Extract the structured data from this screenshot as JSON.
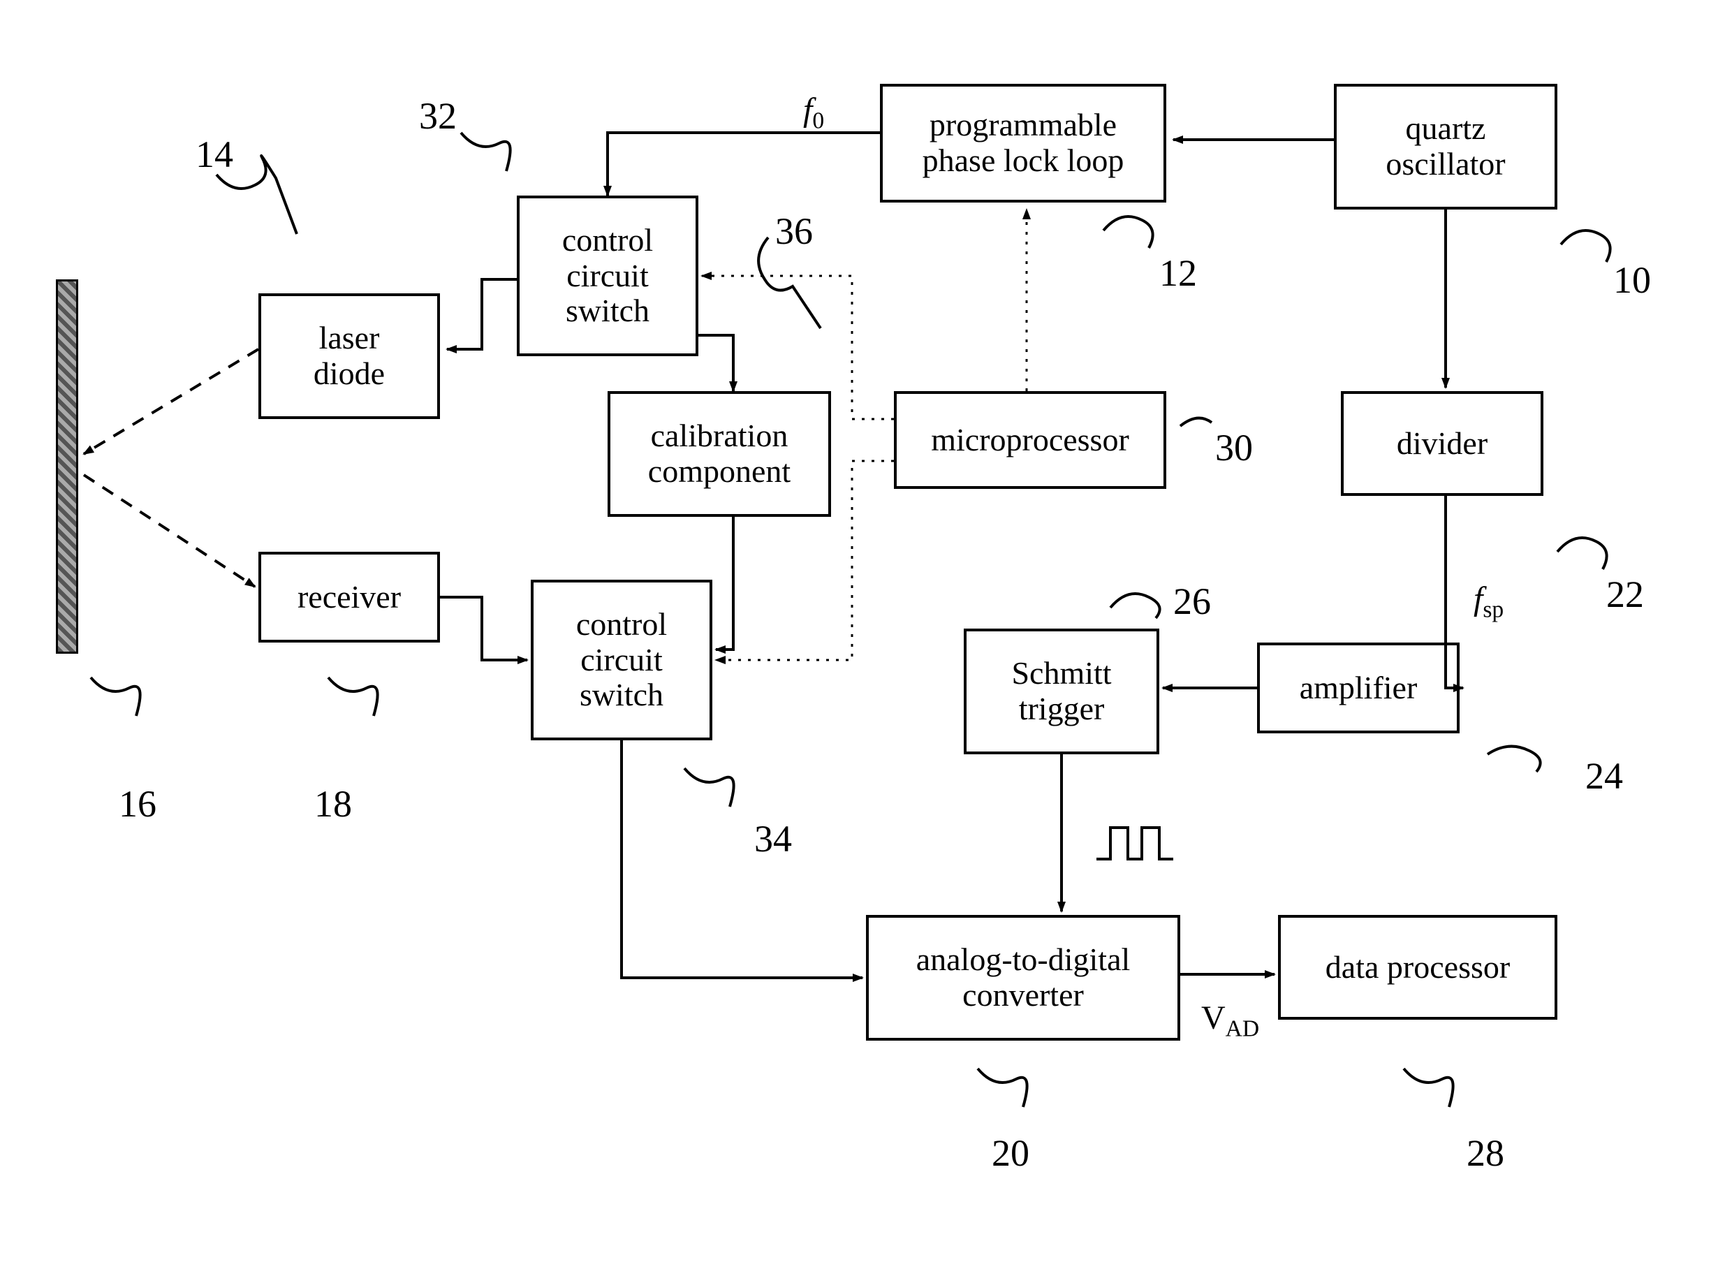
{
  "boxes": {
    "quartz": "quartz\noscillator",
    "pll": "programmable\nphase lock loop",
    "ccs_top": "control\ncircuit\nswitch",
    "laser": "laser\ndiode",
    "receiver": "receiver",
    "calibration": "calibration\ncomponent",
    "micro": "microprocessor",
    "divider": "divider",
    "ccs_bot": "control\ncircuit\nswitch",
    "schmitt": "Schmitt\ntrigger",
    "amplifier": "amplifier",
    "adc": "analog-to-digital\nconverter",
    "dataproc": "data processor"
  },
  "refs": {
    "r10": "10",
    "r12": "12",
    "r14": "14",
    "r16": "16",
    "r18": "18",
    "r20": "20",
    "r22": "22",
    "r24": "24",
    "r26": "26",
    "r28": "28",
    "r30": "30",
    "r32": "32",
    "r34": "34",
    "r36": "36"
  },
  "signals": {
    "f0": "f",
    "f0_sub": "0",
    "fsp": "f",
    "fsp_sub": "sp",
    "vad": "V",
    "vad_sub": "AD"
  },
  "style": {
    "stroke": "#000000",
    "stroke_w": 4,
    "dash": "18 14",
    "dot": "4 10"
  }
}
